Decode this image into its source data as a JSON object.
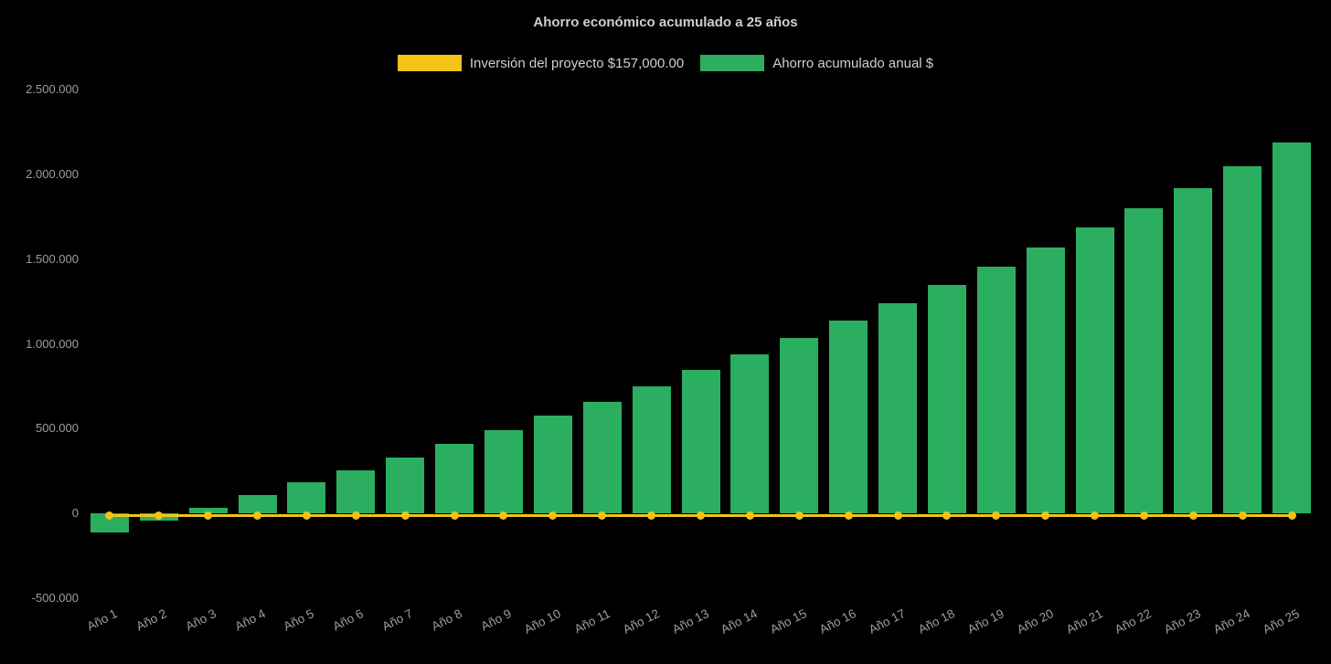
{
  "chart_data": {
    "type": "bar",
    "title": "Ahorro económico acumulado a 25 años",
    "background": "#000000",
    "legend_position": "top",
    "grid": false,
    "categories": [
      "Año 1",
      "Año 2",
      "Año 3",
      "Año 4",
      "Año 5",
      "Año 6",
      "Año 7",
      "Año 8",
      "Año 9",
      "Año 10",
      "Año 11",
      "Año 12",
      "Año 13",
      "Año 14",
      "Año 15",
      "Año 16",
      "Año 17",
      "Año 18",
      "Año 19",
      "Año 20",
      "Año 21",
      "Año 22",
      "Año 23",
      "Año 24",
      "Año 25"
    ],
    "series": [
      {
        "name": "Inversión del proyecto $157,000.00",
        "type": "line",
        "color": "#f3c317",
        "stated_value": 157000,
        "plotted_at": 0
      },
      {
        "name": "Ahorro acumulado anual $",
        "type": "bar",
        "color": "#2bae60",
        "values": [
          -110000,
          -40000,
          35000,
          110000,
          185000,
          255000,
          330000,
          410000,
          490000,
          575000,
          660000,
          750000,
          845000,
          940000,
          1035000,
          1135000,
          1240000,
          1345000,
          1455000,
          1570000,
          1685000,
          1800000,
          1920000,
          2045000,
          2185000
        ]
      }
    ],
    "ylim": [
      -500000,
      2500000
    ],
    "ytick_values": [
      2500000,
      2000000,
      1500000,
      1000000,
      500000,
      0,
      -500000
    ],
    "ytick_labels": [
      "2.500.000",
      "2.000.000",
      "1.500.000",
      "1.000.000",
      "500.000",
      "0",
      "-500.000"
    ]
  }
}
